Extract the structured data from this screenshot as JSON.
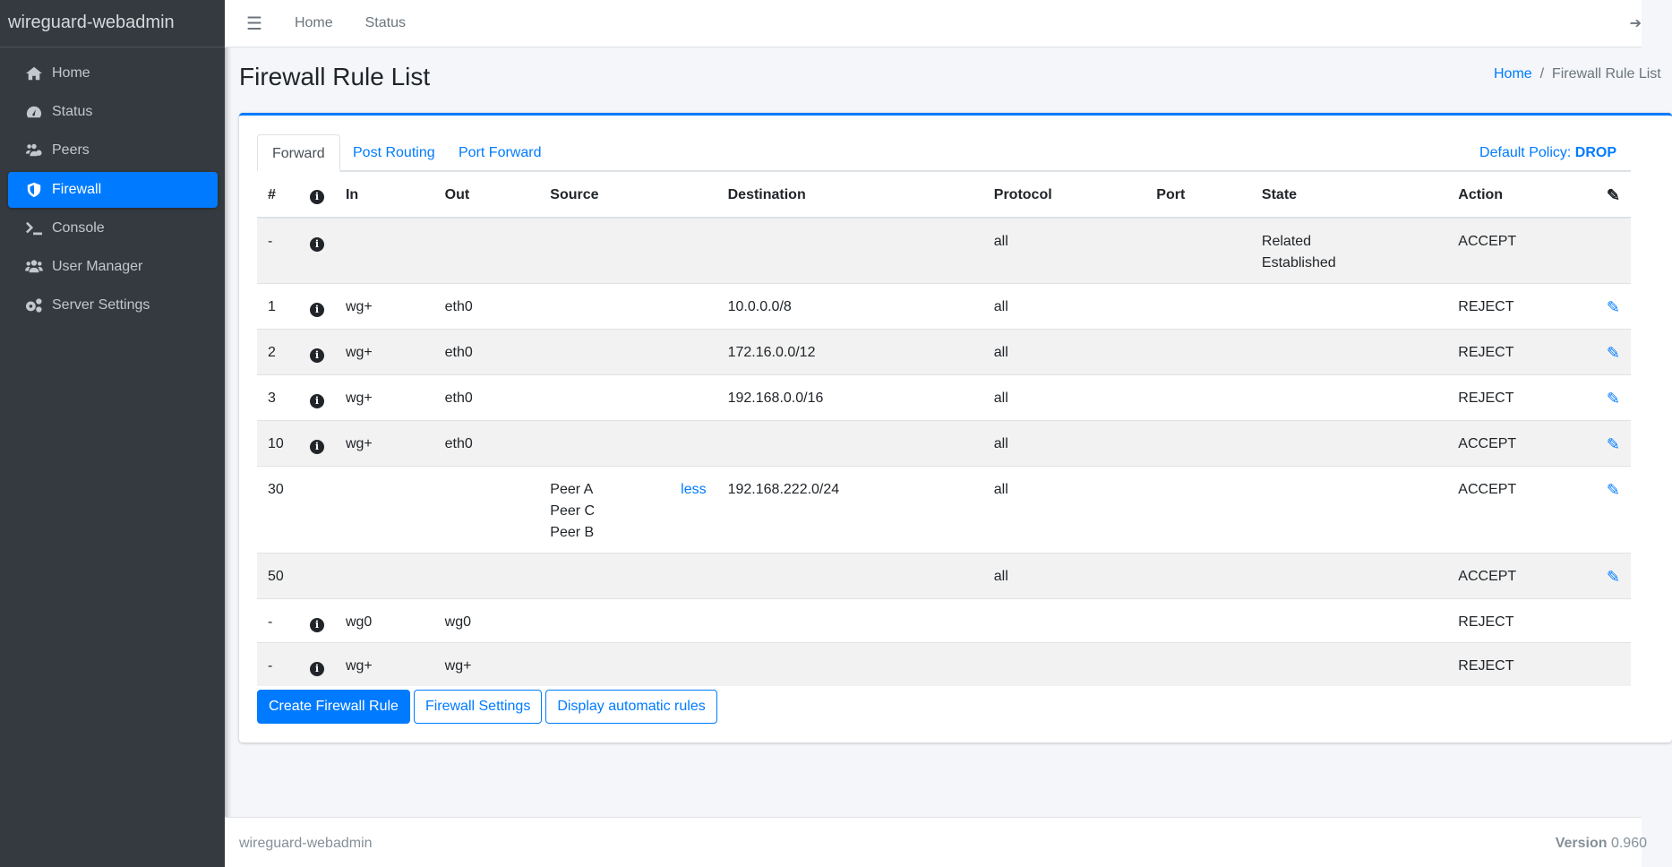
{
  "brand": "wireguard-webadmin",
  "sidebar": {
    "items": [
      {
        "label": "Home",
        "icon": "home-icon"
      },
      {
        "label": "Status",
        "icon": "tachometer-icon"
      },
      {
        "label": "Peers",
        "icon": "users-cog-icon"
      },
      {
        "label": "Firewall",
        "icon": "shield-icon",
        "active": true
      },
      {
        "label": "Console",
        "icon": "terminal-icon"
      },
      {
        "label": "User Manager",
        "icon": "users-icon"
      },
      {
        "label": "Server Settings",
        "icon": "cogs-icon"
      }
    ]
  },
  "topbar": {
    "links": [
      "Home",
      "Status"
    ]
  },
  "page": {
    "title": "Firewall Rule List",
    "breadcrumb": [
      "Home",
      "Firewall Rule List"
    ]
  },
  "tabs": [
    "Forward",
    "Post Routing",
    "Port Forward"
  ],
  "policy": {
    "label": "Default Policy:",
    "value": "DROP"
  },
  "table": {
    "headers": [
      "#",
      "",
      "In",
      "Out",
      "Source",
      "Destination",
      "Protocol",
      "Port",
      "State",
      "Action",
      ""
    ],
    "rows": [
      {
        "n": "-",
        "info": true,
        "in": "",
        "out": "",
        "source": [],
        "dest": "",
        "proto": "all",
        "port": "",
        "state": [
          "Related",
          "Established"
        ],
        "action": "ACCEPT",
        "edit": false
      },
      {
        "n": "1",
        "info": true,
        "in": "wg+",
        "out": "eth0",
        "source": [],
        "dest": "10.0.0.0/8",
        "proto": "all",
        "port": "",
        "state": [],
        "action": "REJECT",
        "edit": true
      },
      {
        "n": "2",
        "info": true,
        "in": "wg+",
        "out": "eth0",
        "source": [],
        "dest": "172.16.0.0/12",
        "proto": "all",
        "port": "",
        "state": [],
        "action": "REJECT",
        "edit": true
      },
      {
        "n": "3",
        "info": true,
        "in": "wg+",
        "out": "eth0",
        "source": [],
        "dest": "192.168.0.0/16",
        "proto": "all",
        "port": "",
        "state": [],
        "action": "REJECT",
        "edit": true
      },
      {
        "n": "10",
        "info": true,
        "in": "wg+",
        "out": "eth0",
        "source": [],
        "dest": "",
        "proto": "all",
        "port": "",
        "state": [],
        "action": "ACCEPT",
        "edit": true
      },
      {
        "n": "30",
        "info": false,
        "in": "",
        "out": "",
        "source": [
          "Peer A",
          "Peer C",
          "Peer B"
        ],
        "less": "less",
        "dest": "192.168.222.0/24",
        "proto": "all",
        "port": "",
        "state": [],
        "action": "ACCEPT",
        "edit": true
      },
      {
        "n": "50",
        "info": false,
        "in": "",
        "out": "",
        "source": [],
        "dest": "",
        "proto": "all",
        "port": "",
        "state": [],
        "action": "ACCEPT",
        "edit": true
      },
      {
        "n": "-",
        "info": true,
        "in": "wg0",
        "out": "wg0",
        "source": [],
        "dest": "",
        "proto": "",
        "port": "",
        "state": [],
        "action": "REJECT",
        "edit": false
      },
      {
        "n": "-",
        "info": true,
        "in": "wg+",
        "out": "wg+",
        "source": [],
        "dest": "",
        "proto": "",
        "port": "",
        "state": [],
        "action": "REJECT",
        "edit": false
      }
    ]
  },
  "buttons": {
    "create": "Create Firewall Rule",
    "settings": "Firewall Settings",
    "auto": "Display automatic rules"
  },
  "footer": {
    "left": "wireguard-webadmin",
    "version_label": "Version",
    "version": "0.960"
  },
  "colors": {
    "accent": "#007bff",
    "sidebar": "#343a40"
  }
}
